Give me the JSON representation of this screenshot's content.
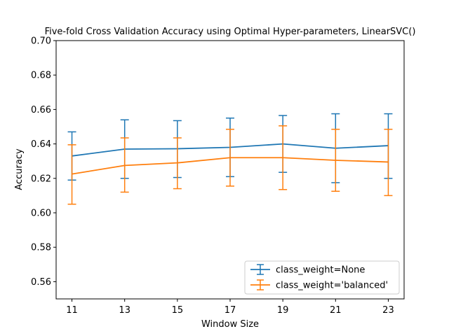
{
  "chart_data": {
    "type": "line",
    "title": "Five-fold Cross Validation Accuracy using Optimal Hyper-parameters, LinearSVC()",
    "xlabel": "Window Size",
    "ylabel": "Accuracy",
    "x": [
      11,
      13,
      15,
      17,
      19,
      21,
      23
    ],
    "xlim": [
      10.4,
      23.6
    ],
    "ylim": [
      0.55,
      0.7
    ],
    "yticks": [
      "0.56",
      "0.58",
      "0.60",
      "0.62",
      "0.64",
      "0.66",
      "0.68",
      "0.70"
    ],
    "xticks": [
      "11",
      "13",
      "15",
      "17",
      "19",
      "21",
      "23"
    ],
    "grid": false,
    "legend_position": "lower-right",
    "series": [
      {
        "name": "class_weight=None",
        "color": "#1f77b4",
        "values": [
          0.633,
          0.637,
          0.6372,
          0.638,
          0.64,
          0.6375,
          0.639
        ],
        "err_low": [
          0.619,
          0.62,
          0.6205,
          0.621,
          0.6235,
          0.6175,
          0.62
        ],
        "err_high": [
          0.647,
          0.654,
          0.6535,
          0.655,
          0.6565,
          0.6575,
          0.6575
        ]
      },
      {
        "name": "class_weight='balanced'",
        "color": "#ff7f0e",
        "values": [
          0.6225,
          0.6275,
          0.629,
          0.632,
          0.632,
          0.6305,
          0.6295
        ],
        "err_low": [
          0.605,
          0.612,
          0.614,
          0.6155,
          0.6135,
          0.6125,
          0.61
        ],
        "err_high": [
          0.6395,
          0.6435,
          0.6435,
          0.6485,
          0.6505,
          0.6485,
          0.6485
        ]
      }
    ]
  }
}
